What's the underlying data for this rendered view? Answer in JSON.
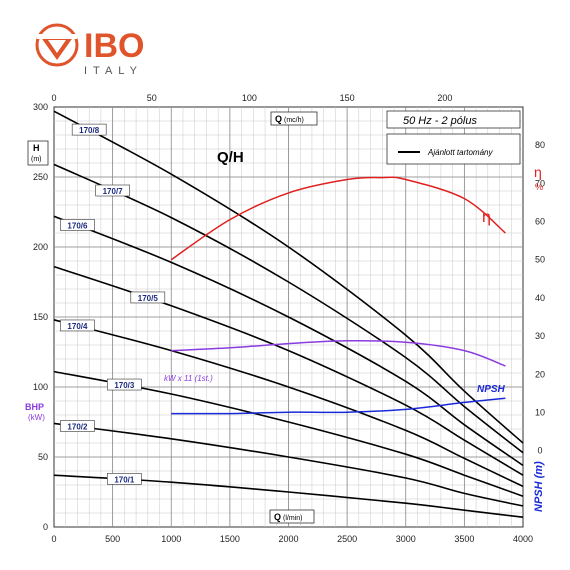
{
  "brand": {
    "name": "IBO",
    "sub": "ITALY",
    "color": "#e0542b"
  },
  "chart_data": {
    "type": "line",
    "title": "Q/H",
    "frequency_label": "50 Hz - 2 pólus",
    "legend": {
      "entry": "Ajánlott tartomány",
      "placement": "top-right"
    },
    "grid": true,
    "x_bottom": {
      "label": "Q",
      "unit": "(l/min)",
      "range": [
        0,
        4000
      ],
      "ticks": [
        0,
        500,
        1000,
        1500,
        2000,
        2500,
        3000,
        3500,
        4000
      ]
    },
    "x_top": {
      "label": "Q",
      "unit": "(mc/h)",
      "range": [
        0,
        240
      ],
      "ticks": [
        0,
        50,
        100,
        150,
        200
      ]
    },
    "y_left": {
      "label": "H",
      "unit": "(m)",
      "range": [
        0,
        300
      ],
      "ticks": [
        0,
        50,
        100,
        150,
        200,
        250,
        300
      ]
    },
    "y_left_secondary": {
      "label": "BHP",
      "unit": "(kW)"
    },
    "y_right_eta": {
      "label": "η",
      "unit": "%",
      "range": [
        -20,
        90
      ],
      "ticks": [
        0,
        10,
        20,
        30,
        40,
        50,
        60,
        70,
        80
      ]
    },
    "y_right_npsh": {
      "label": "NPSH (m)"
    },
    "series": [
      {
        "name": "170/8",
        "color": "#000000",
        "x": [
          0,
          1000,
          2000,
          3000,
          3500,
          4000
        ],
        "y": [
          297,
          252,
          200,
          137,
          97,
          60
        ]
      },
      {
        "name": "170/7",
        "color": "#000000",
        "x": [
          0,
          1000,
          2000,
          3000,
          3500,
          4000
        ],
        "y": [
          259,
          221,
          175,
          121,
          86,
          53
        ]
      },
      {
        "name": "170/6",
        "color": "#000000",
        "x": [
          0,
          1000,
          2000,
          3000,
          3500,
          4000
        ],
        "y": [
          222,
          189,
          150,
          104,
          73,
          44
        ]
      },
      {
        "name": "170/5",
        "color": "#000000",
        "x": [
          0,
          1000,
          2000,
          3000,
          3500,
          4000
        ],
        "y": [
          186,
          158,
          126,
          87,
          62,
          37
        ]
      },
      {
        "name": "170/4",
        "color": "#000000",
        "x": [
          0,
          1000,
          2000,
          3000,
          3500,
          4000
        ],
        "y": [
          148,
          126,
          100,
          69,
          49,
          29
        ]
      },
      {
        "name": "170/3",
        "color": "#000000",
        "x": [
          0,
          1000,
          2000,
          3000,
          3500,
          4000
        ],
        "y": [
          111,
          95,
          75,
          52,
          37,
          22
        ]
      },
      {
        "name": "170/2",
        "color": "#000000",
        "x": [
          0,
          1000,
          2000,
          3000,
          3500,
          4000
        ],
        "y": [
          74,
          63,
          50,
          35,
          24,
          15
        ]
      },
      {
        "name": "170/1",
        "color": "#000000",
        "x": [
          0,
          1000,
          2000,
          3000,
          3500,
          4000
        ],
        "y": [
          37,
          32,
          25,
          17,
          12,
          7
        ]
      },
      {
        "name": "η",
        "color": "#e02020",
        "axis": "eta",
        "x": [
          1000,
          1500,
          2000,
          2500,
          2800,
          3000,
          3500,
          3850
        ],
        "y": [
          50,
          60.5,
          67.5,
          71,
          71.5,
          71,
          66,
          57
        ]
      },
      {
        "name": "kW x 11 (1st.)",
        "color": "#8a3ce0",
        "axis": "left",
        "x": [
          1000,
          1500,
          2000,
          2500,
          3000,
          3500,
          3850
        ],
        "y": [
          126,
          128,
          131,
          133,
          132,
          126,
          115
        ]
      },
      {
        "name": "NPSH",
        "color": "#1a2ad8",
        "axis": "left",
        "x": [
          1000,
          1500,
          2000,
          2500,
          3000,
          3500,
          3850
        ],
        "y": [
          81,
          81,
          82,
          82,
          84,
          89,
          92
        ]
      }
    ]
  }
}
